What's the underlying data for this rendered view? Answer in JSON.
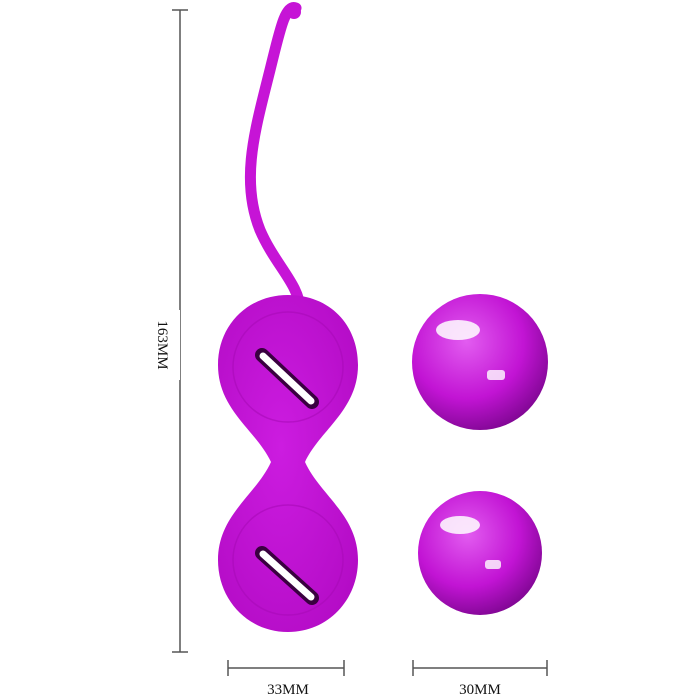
{
  "dimensions": {
    "length": "163MM",
    "width_silicone": "33MM",
    "width_ball": "30MM"
  },
  "colors": {
    "product": "#c614d6",
    "product_dark": "#9a0aa8",
    "line": "#555555"
  }
}
